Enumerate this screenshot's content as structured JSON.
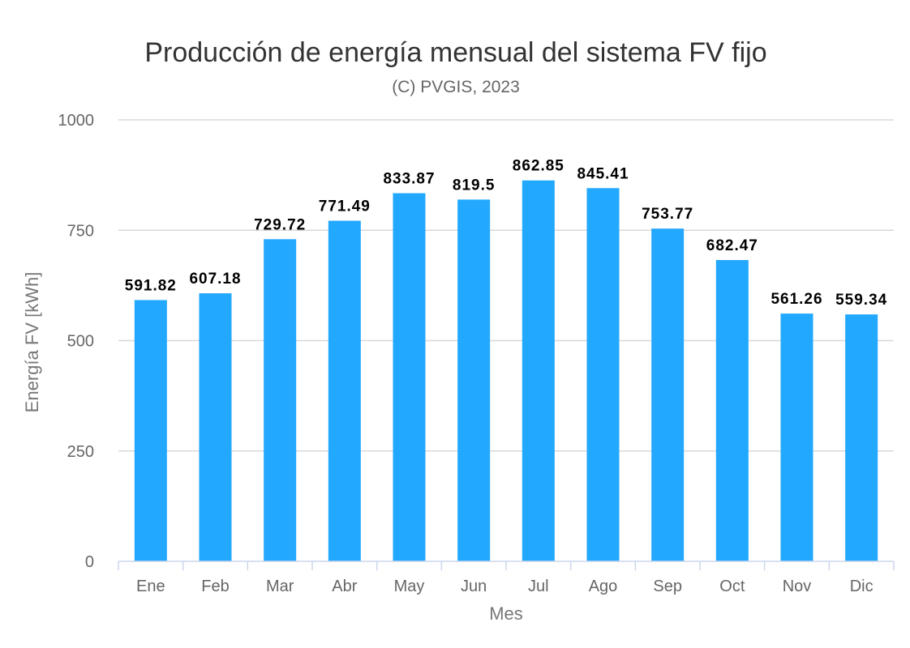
{
  "chart_data": {
    "type": "bar",
    "title": "Producción de energía mensual del sistema FV fijo",
    "subtitle": "(C) PVGIS, 2023",
    "xlabel": "Mes",
    "ylabel": "Energía FV [kWh]",
    "categories": [
      "Ene",
      "Feb",
      "Mar",
      "Abr",
      "May",
      "Jun",
      "Jul",
      "Ago",
      "Sep",
      "Oct",
      "Nov",
      "Dic"
    ],
    "values": [
      591.82,
      607.18,
      729.72,
      771.49,
      833.87,
      819.5,
      862.85,
      845.41,
      753.77,
      682.47,
      561.26,
      559.34
    ],
    "value_labels": [
      "591.82",
      "607.18",
      "729.72",
      "771.49",
      "833.87",
      "819.5",
      "862.85",
      "845.41",
      "753.77",
      "682.47",
      "561.26",
      "559.34"
    ],
    "ylim": [
      0,
      1000
    ],
    "yticks": [
      0,
      250,
      500,
      750,
      1000
    ],
    "ytick_labels": [
      "0",
      "250",
      "500",
      "750",
      "1000"
    ],
    "grid": true,
    "legend": "none",
    "bar_color": "#22a8fe"
  }
}
